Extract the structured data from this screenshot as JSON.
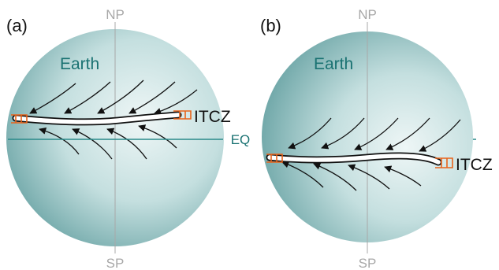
{
  "panels": [
    {
      "tag": "(a)",
      "planet": "Earth",
      "np": "NP",
      "sp": "SP",
      "zone": "ITCZ"
    },
    {
      "tag": "(b)",
      "planet": "Earth",
      "np": "NP",
      "sp": "SP",
      "zone": "ITCZ"
    }
  ],
  "equator_label": "EQ",
  "colors": {
    "sphere_light": "#eef6f6",
    "sphere_dark": "#6fa7a8",
    "earth_text": "#1a7272",
    "equator_line": "#2a8a8a",
    "axis_line": "#a8a8a8",
    "pole_text": "#a8a8a8",
    "arrow": "#111111",
    "band_fill": "#ffffff",
    "band_stroke": "#111111",
    "flux_marker": "#e8631a"
  }
}
